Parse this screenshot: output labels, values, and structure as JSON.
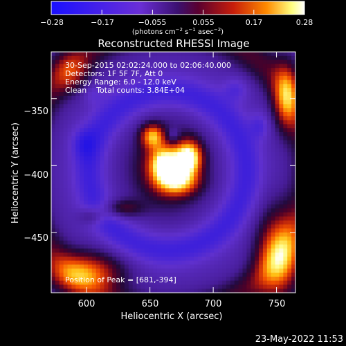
{
  "colorbar": {
    "ticks": [
      "−0.28",
      "−0.17",
      "−0.055",
      "0.055",
      "0.17",
      "0.28"
    ],
    "units_main": "(photons cm",
    "units_sup1": "−2",
    "units_mid1": " s",
    "units_sup2": "−1",
    "units_mid2": " asec",
    "units_sup3": "−2",
    "units_end": ")",
    "range": [
      -0.28,
      0.28
    ],
    "colors": [
      "#1a10ff",
      "#6a2fd6",
      "#3b1070",
      "#5a0030",
      "#c81e0a",
      "#ff8a00",
      "#ffff80",
      "#ffffff"
    ]
  },
  "chart_data": {
    "type": "heatmap",
    "title": "Reconstructed RHESSI Image",
    "xlabel": "Heliocentric X (arcsec)",
    "ylabel": "Heliocentric Y (arcsec)",
    "xlim": [
      572,
      765
    ],
    "ylim": [
      -495,
      -315
    ],
    "x_ticks": [
      600,
      650,
      700,
      750
    ],
    "y_ticks": [
      -350,
      -400,
      -450
    ],
    "x_tick_labels": [
      "600",
      "650",
      "700",
      "750"
    ],
    "y_tick_labels": [
      "−350",
      "−400",
      "−450"
    ],
    "info_lines": [
      "30-Sep-2015 02:02:24.000 to 02:06:40.000",
      "Detectors: 1F 5F 7F, Att 0",
      "Energy Range: 6.0 - 12.0 keV",
      "Clean    Total counts: 3.84E+04"
    ],
    "peak_label": "Position of Peak = [681,-394]",
    "peak": [
      681,
      -394
    ]
  },
  "footer": {
    "timestamp": "23-May-2022 11:53"
  }
}
